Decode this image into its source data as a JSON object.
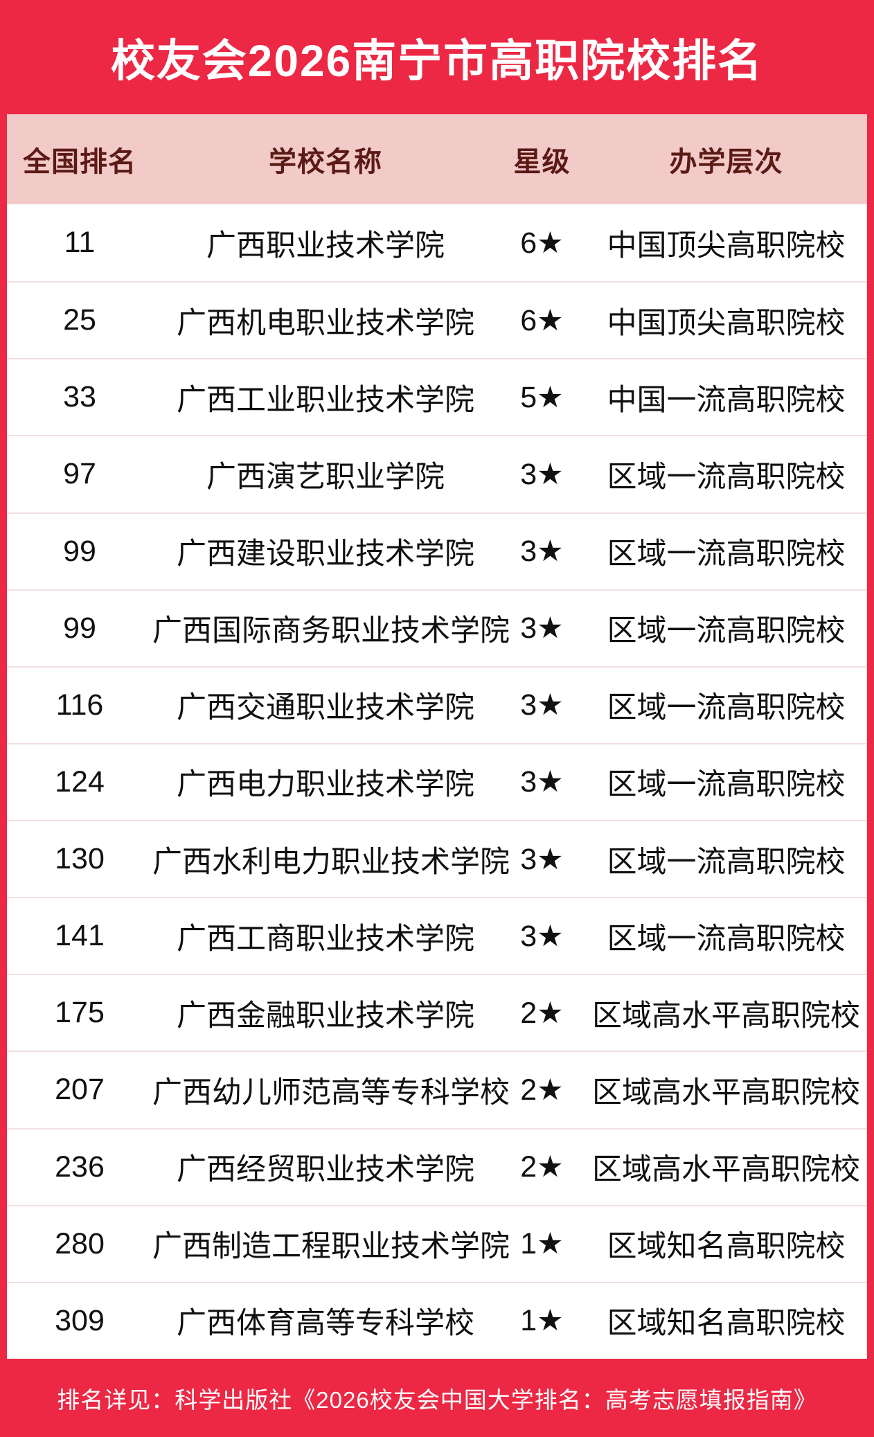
{
  "title": "校友会2026南宁市高职院校排名",
  "footer_note": "排名详见：科学出版社《2026校友会中国大学排名：高考志愿填报指南》",
  "colors": {
    "background_red": "#ec2844",
    "header_pink": "#f2cbc8",
    "header_text_maroon": "#5c1a16",
    "row_background": "#ffffff",
    "row_text": "#111111",
    "separator": "#f3dfdf",
    "title_text": "#ffffff"
  },
  "chart_data": {
    "type": "table",
    "title": "校友会2026南宁市高职院校排名",
    "columns": [
      "全国排名",
      "学校名称",
      "星级",
      "办学层次"
    ],
    "rows": [
      [
        "11",
        "广西职业技术学院",
        "6★",
        "中国顶尖高职院校"
      ],
      [
        "25",
        "广西机电职业技术学院",
        "6★",
        "中国顶尖高职院校"
      ],
      [
        "33",
        "广西工业职业技术学院",
        "5★",
        "中国一流高职院校"
      ],
      [
        "97",
        "广西演艺职业学院",
        "3★",
        "区域一流高职院校"
      ],
      [
        "99",
        "广西建设职业技术学院",
        "3★",
        "区域一流高职院校"
      ],
      [
        "99",
        "广西国际商务职业技术学院",
        "3★",
        "区域一流高职院校"
      ],
      [
        "116",
        "广西交通职业技术学院",
        "3★",
        "区域一流高职院校"
      ],
      [
        "124",
        "广西电力职业技术学院",
        "3★",
        "区域一流高职院校"
      ],
      [
        "130",
        "广西水利电力职业技术学院",
        "3★",
        "区域一流高职院校"
      ],
      [
        "141",
        "广西工商职业技术学院",
        "3★",
        "区域一流高职院校"
      ],
      [
        "175",
        "广西金融职业技术学院",
        "2★",
        "区域高水平高职院校"
      ],
      [
        "207",
        "广西幼儿师范高等专科学校",
        "2★",
        "区域高水平高职院校"
      ],
      [
        "236",
        "广西经贸职业技术学院",
        "2★",
        "区域高水平高职院校"
      ],
      [
        "280",
        "广西制造工程职业技术学院",
        "1★",
        "区域知名高职院校"
      ],
      [
        "309",
        "广西体育高等专科学校",
        "1★",
        "区域知名高职院校"
      ]
    ]
  }
}
